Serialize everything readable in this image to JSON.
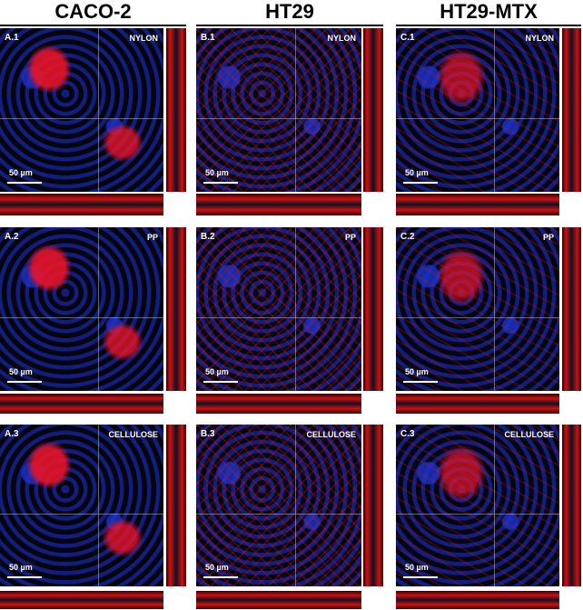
{
  "columns": [
    {
      "header": "CACO-2",
      "panels": [
        {
          "label": "A.1",
          "substrate": "NYLON",
          "scale_bar": "50 µm"
        },
        {
          "label": "A.2",
          "substrate": "PP",
          "scale_bar": "50 µm"
        },
        {
          "label": "A.3",
          "substrate": "CELLULOSE",
          "scale_bar": "50 µm"
        }
      ]
    },
    {
      "header": "HT29",
      "panels": [
        {
          "label": "B.1",
          "substrate": "NYLON",
          "scale_bar": "50 µm"
        },
        {
          "label": "B.2",
          "substrate": "PP",
          "scale_bar": "50 µm"
        },
        {
          "label": "B.3",
          "substrate": "CELLULOSE",
          "scale_bar": "50 µm"
        }
      ]
    },
    {
      "header": "HT29-MTX",
      "panels": [
        {
          "label": "C.1",
          "substrate": "NYLON",
          "scale_bar": "50 µm"
        },
        {
          "label": "C.2",
          "substrate": "PP",
          "scale_bar": "50 µm"
        },
        {
          "label": "C.3",
          "substrate": "CELLULOSE",
          "scale_bar": "50 µm"
        }
      ]
    }
  ]
}
